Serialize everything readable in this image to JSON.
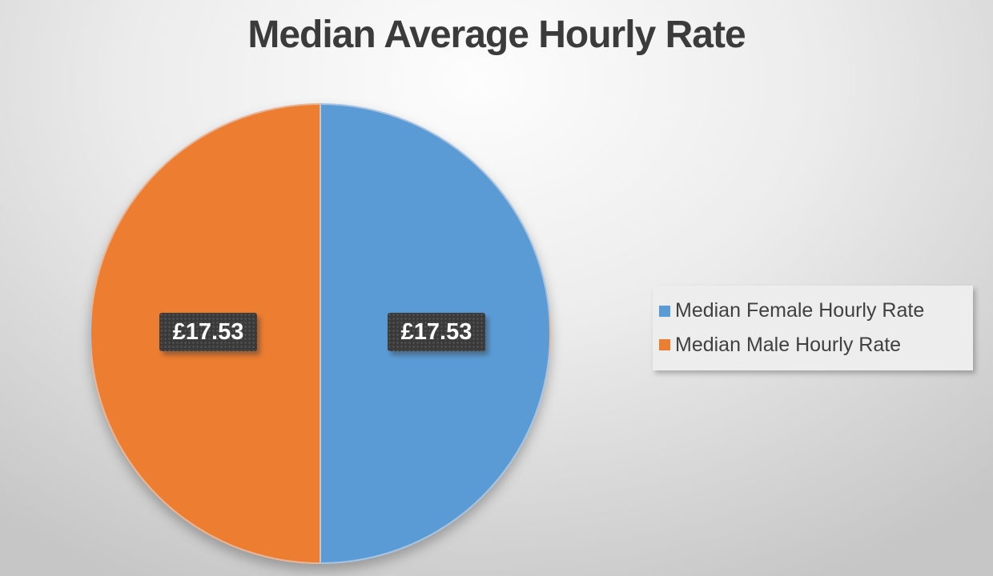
{
  "chart_data": {
    "type": "pie",
    "title": "Median Average Hourly Rate",
    "start_angle_deg": 0,
    "legend_position": "right",
    "labels_shown": true,
    "series": [
      {
        "name": "Median Female Hourly Rate",
        "value": 17.53,
        "label": "£17.53",
        "color": "#5B9BD5"
      },
      {
        "name": "Median Male Hourly Rate",
        "value": 17.53,
        "label": "£17.53",
        "color": "#ED7D31"
      }
    ]
  },
  "colors": {
    "title_text": "#3b3b3b",
    "label_box_bg": "#3a3a3a",
    "label_text": "#ffffff",
    "legend_bg": "#ededed",
    "legend_text": "#404040",
    "background_edge": "#c6c6c6",
    "background_center": "#fdfdfd"
  }
}
